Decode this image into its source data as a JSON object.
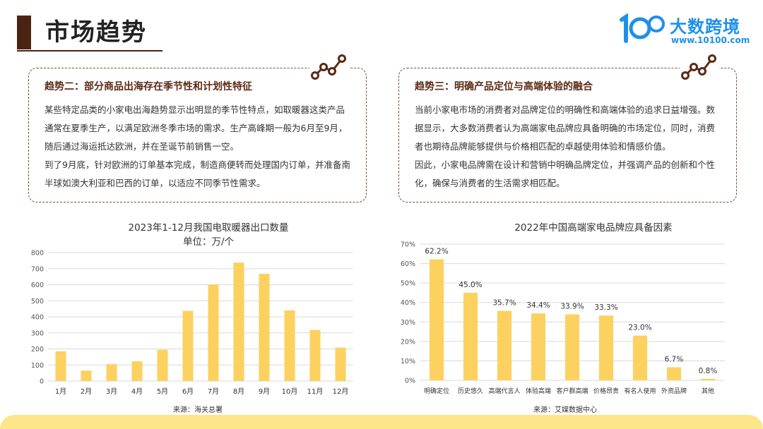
{
  "header": {
    "title": "市场趋势",
    "logo_name": "大数跨境",
    "logo_url": "www.10100.com",
    "logo_icon": "brand-logo-icon"
  },
  "trend2": {
    "heading": "趋势二：部分商品出海存在季节性和计划性特征",
    "paragraph1": "某些特定品类的小家电出海趋势显示出明显的季节性特点，如取暖器这类产品通常在夏季生产，以满足欧洲冬季市场的需求。生产高峰期一般为6月至9月，随后通过海运抵达欧洲，并在圣诞节前销售一空。",
    "paragraph2": "到了9月底，针对欧洲的订单基本完成，制造商便转而处理国内订单，并准备南半球如澳大利亚和巴西的订单，以适应不同季节性需求。",
    "icon": "trend-line-icon"
  },
  "trend3": {
    "heading": "趋势三：明确产品定位与高端体验的融合",
    "paragraph1": "当前小家电市场的消费者对品牌定位的明确性和高端体验的追求日益增强。数据显示，大多数消费者认为高端家电品牌应具备明确的市场定位，同时，消费者也期待品牌能够提供与价格相匹配的卓越使用体验和情感价值。",
    "paragraph2": "因此，小家电品牌需在设计和营销中明确品牌定位，并强调产品的创新和个性化，确保与消费者的生活需求相匹配。",
    "icon": "trend-line-icon"
  },
  "colors": {
    "bar": "#fdd160",
    "accent": "#4a2413",
    "heading": "#5b2a14",
    "brand": "#1e90ea",
    "footer": "#fde68a"
  },
  "chart_data": [
    {
      "type": "bar",
      "title": "2023年1-12月我国电取暖器出口数量",
      "subtitle": "单位：万/个",
      "categories": [
        "1月",
        "2月",
        "3月",
        "4月",
        "5月",
        "6月",
        "7月",
        "8月",
        "9月",
        "10月",
        "11月",
        "12月"
      ],
      "values": [
        185,
        65,
        105,
        123,
        195,
        437,
        602,
        738,
        668,
        440,
        318,
        208
      ],
      "ylim": [
        0,
        800
      ],
      "yticks": [
        "0",
        "100",
        "200",
        "300",
        "400",
        "500",
        "600",
        "700",
        "800"
      ],
      "grid": true,
      "source": "来源：海关总署"
    },
    {
      "type": "bar",
      "title": "2022年中国高端家电品牌应具备因素",
      "categories": [
        "明确定位",
        "历史悠久",
        "高端代言人",
        "体验高端",
        "客户群高端",
        "价格昂贵",
        "有名人使用",
        "外资品牌",
        "其他"
      ],
      "values": [
        62.2,
        45.0,
        35.7,
        34.4,
        33.9,
        33.3,
        23.0,
        6.7,
        0.8
      ],
      "value_labels": [
        "62.2%",
        "45.0%",
        "35.7%",
        "34.4%",
        "33.9%",
        "33.3%",
        "23.0%",
        "6.7%",
        "0.8%"
      ],
      "ylim": [
        0,
        70
      ],
      "yticks": [
        "0%",
        "10%",
        "20%",
        "30%",
        "40%",
        "50%",
        "60%",
        "70%"
      ],
      "grid": true,
      "source": "来源：艾媒数据中心"
    }
  ]
}
